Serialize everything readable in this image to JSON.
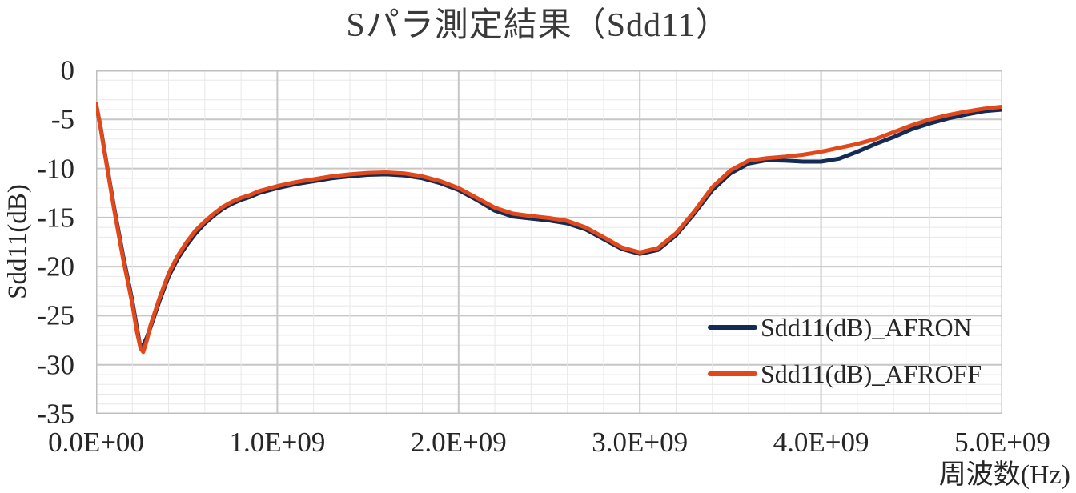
{
  "colors": {
    "background": "#FFFFFF",
    "text": "#262626",
    "title_text": "#3A3A3A",
    "grid_minor": "#E8E8E8",
    "grid_major": "#C6C6C6",
    "axis_border": "#BFBFBF",
    "series_afron": "#132B55",
    "series_afroff": "#E2491A"
  },
  "legend": {
    "items": [
      {
        "label": "Sdd11(dB)_AFRON",
        "color": "#132B55"
      },
      {
        "label": "Sdd11(dB)_AFROFF",
        "color": "#E2491A"
      }
    ]
  },
  "chart_data": {
    "type": "line",
    "title": "Sパラ測定結果（Sdd11）",
    "xlabel": "周波数(Hz)",
    "ylabel": "Sdd11(dB)",
    "xlim": [
      0,
      5000000000.0
    ],
    "ylim": [
      -35,
      0
    ],
    "grid": true,
    "legend_position": "inside-bottom-right",
    "x_tick_labels": [
      "0.0E+00",
      "1.0E+09",
      "2.0E+09",
      "3.0E+09",
      "4.0E+09",
      "5.0E+09"
    ],
    "x_tick_values": [
      0,
      1000000000.0,
      2000000000.0,
      3000000000.0,
      4000000000.0,
      5000000000.0
    ],
    "y_tick_labels": [
      "0",
      "-5",
      "-10",
      "-15",
      "-20",
      "-25",
      "-30",
      "-35"
    ],
    "y_tick_values": [
      0,
      -5,
      -10,
      -15,
      -20,
      -25,
      -30,
      -35
    ],
    "x_minor_step": 200000000.0,
    "y_minor_step": 1,
    "x": [
      0,
      25000000.0,
      50000000.0,
      100000000.0,
      150000000.0,
      200000000.0,
      225000000.0,
      245000000.0,
      260000000.0,
      280000000.0,
      300000000.0,
      350000000.0,
      400000000.0,
      450000000.0,
      500000000.0,
      550000000.0,
      600000000.0,
      650000000.0,
      700000000.0,
      750000000.0,
      800000000.0,
      850000000.0,
      900000000.0,
      1000000000.0,
      1100000000.0,
      1200000000.0,
      1300000000.0,
      1400000000.0,
      1500000000.0,
      1600000000.0,
      1700000000.0,
      1800000000.0,
      1900000000.0,
      2000000000.0,
      2100000000.0,
      2200000000.0,
      2300000000.0,
      2400000000.0,
      2500000000.0,
      2600000000.0,
      2700000000.0,
      2800000000.0,
      2900000000.0,
      3000000000.0,
      3100000000.0,
      3200000000.0,
      3300000000.0,
      3400000000.0,
      3500000000.0,
      3600000000.0,
      3700000000.0,
      3800000000.0,
      3900000000.0,
      4000000000.0,
      4100000000.0,
      4200000000.0,
      4300000000.0,
      4400000000.0,
      4500000000.0,
      4600000000.0,
      4700000000.0,
      4800000000.0,
      4900000000.0,
      5000000000.0
    ],
    "series": [
      {
        "name": "Sdd11(dB)_AFRON",
        "color": "#132B55",
        "values": [
          -3.4,
          -5.8,
          -8.6,
          -14.0,
          -19.0,
          -23.5,
          -26.2,
          -28.3,
          -28.0,
          -27.2,
          -26.2,
          -23.5,
          -21.0,
          -19.2,
          -17.8,
          -16.6,
          -15.6,
          -14.8,
          -14.1,
          -13.6,
          -13.2,
          -12.9,
          -12.5,
          -12.0,
          -11.6,
          -11.3,
          -11.0,
          -10.8,
          -10.65,
          -10.6,
          -10.7,
          -11.0,
          -11.5,
          -12.2,
          -13.2,
          -14.3,
          -14.9,
          -15.1,
          -15.3,
          -15.6,
          -16.2,
          -17.2,
          -18.2,
          -18.7,
          -18.3,
          -16.8,
          -14.6,
          -12.2,
          -10.5,
          -9.5,
          -9.15,
          -9.2,
          -9.3,
          -9.3,
          -9.0,
          -8.3,
          -7.5,
          -6.8,
          -6.0,
          -5.4,
          -4.9,
          -4.5,
          -4.15,
          -4.0
        ]
      },
      {
        "name": "Sdd11(dB)_AFROFF",
        "color": "#E2491A",
        "values": [
          -3.4,
          -5.9,
          -8.7,
          -14.2,
          -19.3,
          -23.8,
          -26.6,
          -28.3,
          -28.7,
          -27.5,
          -26.0,
          -23.2,
          -20.7,
          -18.9,
          -17.5,
          -16.3,
          -15.4,
          -14.6,
          -13.9,
          -13.4,
          -13.0,
          -12.7,
          -12.3,
          -11.8,
          -11.4,
          -11.1,
          -10.8,
          -10.6,
          -10.45,
          -10.4,
          -10.5,
          -10.8,
          -11.3,
          -12.0,
          -13.0,
          -14.0,
          -14.6,
          -14.85,
          -15.05,
          -15.35,
          -16.0,
          -17.0,
          -18.05,
          -18.55,
          -18.1,
          -16.6,
          -14.4,
          -11.9,
          -10.2,
          -9.2,
          -8.95,
          -8.8,
          -8.6,
          -8.3,
          -7.9,
          -7.5,
          -7.0,
          -6.3,
          -5.6,
          -5.0,
          -4.55,
          -4.2,
          -3.9,
          -3.7
        ]
      }
    ]
  }
}
